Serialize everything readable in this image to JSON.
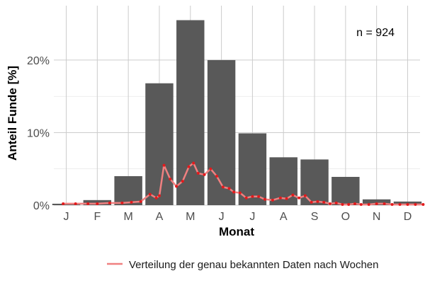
{
  "chart_data": {
    "type": "bar",
    "xlabel": "Monat",
    "ylabel": "Anteil Funde [%]",
    "annotation": "n = 924",
    "categories": [
      "J",
      "F",
      "M",
      "A",
      "M",
      "J",
      "J",
      "A",
      "S",
      "O",
      "N",
      "D"
    ],
    "values": [
      0.2,
      0.7,
      4.0,
      16.8,
      25.5,
      20.0,
      9.9,
      6.6,
      6.3,
      3.9,
      0.8,
      0.5
    ],
    "ylim": [
      0,
      27.5
    ],
    "yticks": [
      0,
      10,
      20
    ],
    "ytick_labels": [
      "0%",
      "10%",
      "20%"
    ],
    "grid": true,
    "legend_position": "bottom-right",
    "colors": {
      "bar": "#595959",
      "line": "#f08080",
      "point": "#e31a1c",
      "grid": "#cccccc"
    },
    "line_series": {
      "name": "Verteilung der genau bekannten Daten nach Wochen",
      "x": [
        0.9,
        1.3,
        1.7,
        2.0,
        2.4,
        2.8,
        3.1,
        3.4,
        3.7,
        3.9,
        4.0,
        4.15,
        4.35,
        4.55,
        4.75,
        4.95,
        5.1,
        5.25,
        5.45,
        5.65,
        5.85,
        6.05,
        6.25,
        6.4,
        6.6,
        6.8,
        7.0,
        7.2,
        7.4,
        7.65,
        7.9,
        8.1,
        8.3,
        8.5,
        8.7,
        8.9,
        9.1,
        9.3,
        9.5,
        9.7,
        9.9,
        10.1,
        10.3,
        10.5,
        10.75,
        11.0,
        11.25,
        11.5,
        11.75,
        12.0,
        12.25,
        12.5
      ],
      "y": [
        0.2,
        0.2,
        0.2,
        0.2,
        0.3,
        0.3,
        0.4,
        0.5,
        1.5,
        1.0,
        1.3,
        5.5,
        3.6,
        2.6,
        3.3,
        5.3,
        5.8,
        4.4,
        4.2,
        5.0,
        4.0,
        2.5,
        2.3,
        1.8,
        1.7,
        1.0,
        1.2,
        1.2,
        0.8,
        0.7,
        1.0,
        0.9,
        1.4,
        1.0,
        1.3,
        0.4,
        0.5,
        0.4,
        0.2,
        0.3,
        0.1,
        0.1,
        0.2,
        0.1,
        0.1,
        0.2,
        0.2,
        0.1,
        0.1,
        0.1,
        0.1,
        0.1
      ]
    }
  }
}
